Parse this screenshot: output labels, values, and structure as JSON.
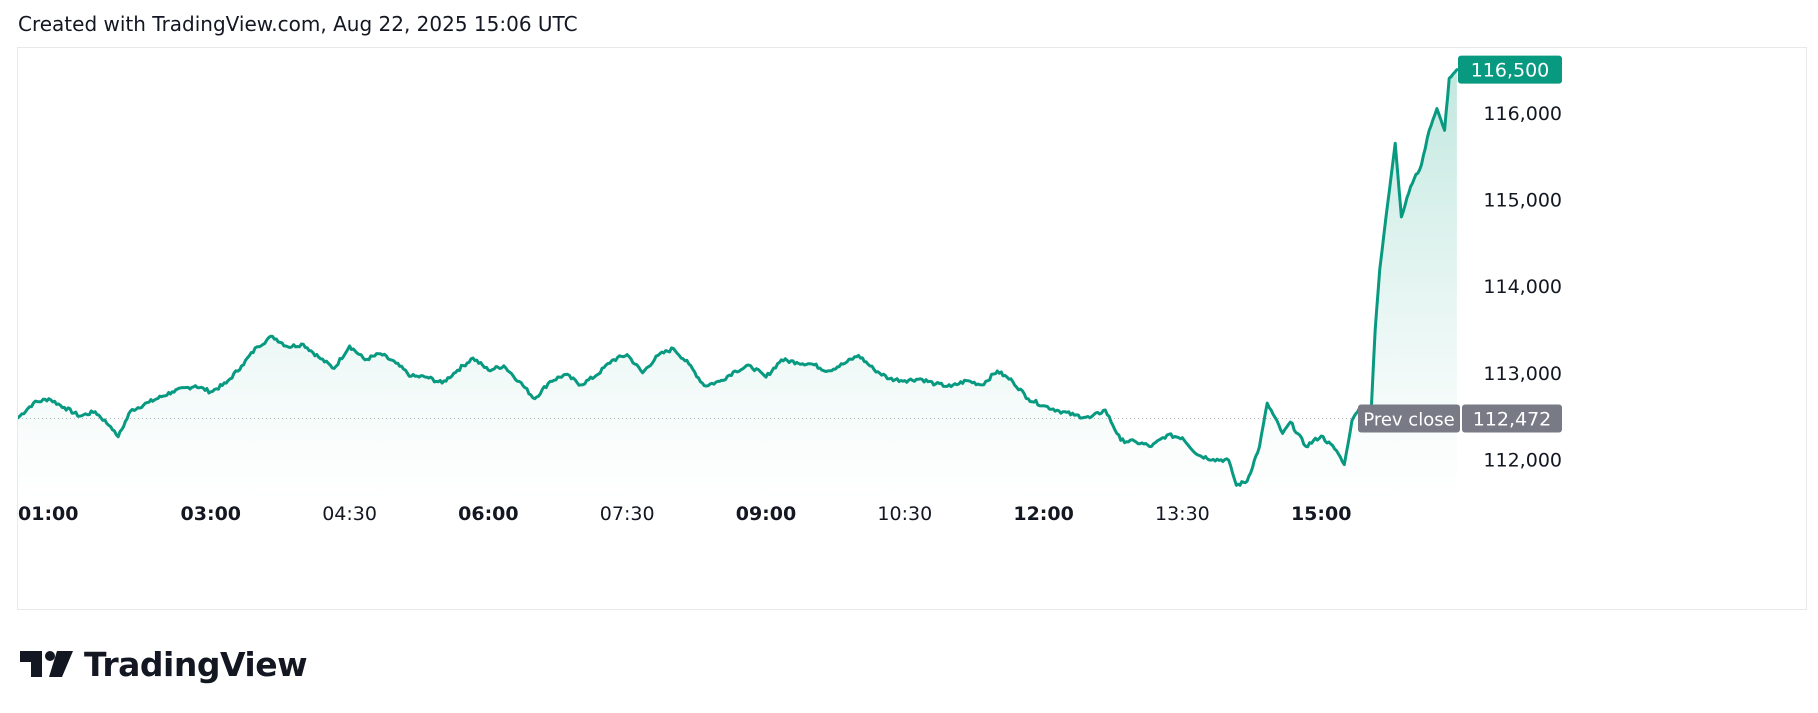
{
  "header": {
    "text": "Created with TradingView.com, Aug 22, 2025 15:06 UTC"
  },
  "brand": {
    "name": "TradingView",
    "icon": "tradingview-logo-icon"
  },
  "colors": {
    "line": "#089981",
    "area_top": "#b6e3d9",
    "area_bottom": "#ffffff",
    "last_price_bg": "#089981",
    "prev_close_bg": "#787b86",
    "text": "#131722",
    "border": "#e9e9ea"
  },
  "chart_data": {
    "type": "area",
    "title": "",
    "xlabel": "",
    "ylabel": "",
    "x_ticks": [
      {
        "label": "01:00",
        "bold": true
      },
      {
        "label": "03:00",
        "bold": true
      },
      {
        "label": "04:30",
        "bold": false
      },
      {
        "label": "06:00",
        "bold": true
      },
      {
        "label": "07:30",
        "bold": false
      },
      {
        "label": "09:00",
        "bold": true
      },
      {
        "label": "10:30",
        "bold": false
      },
      {
        "label": "12:00",
        "bold": true
      },
      {
        "label": "13:30",
        "bold": false
      },
      {
        "label": "15:00",
        "bold": true
      }
    ],
    "y_ticks": [
      "112,000",
      "113,000",
      "114,000",
      "115,000",
      "116,000"
    ],
    "y_tick_values": [
      112000,
      113000,
      114000,
      115000,
      116000
    ],
    "ylim": [
      111600,
      116750
    ],
    "xlim": [
      "00:55",
      "16:30"
    ],
    "last_price": {
      "label": "116,500",
      "value": 116500
    },
    "prev_close": {
      "name": "Prev close",
      "label": "112,472",
      "value": 112472
    },
    "series": [
      {
        "points": [
          [
            "00:55",
            112480
          ],
          [
            "01:05",
            112650
          ],
          [
            "01:15",
            112700
          ],
          [
            "01:25",
            112600
          ],
          [
            "01:35",
            112500
          ],
          [
            "01:45",
            112550
          ],
          [
            "01:55",
            112380
          ],
          [
            "02:00",
            112260
          ],
          [
            "02:08",
            112560
          ],
          [
            "02:20",
            112660
          ],
          [
            "02:35",
            112780
          ],
          [
            "02:50",
            112850
          ],
          [
            "03:00",
            112780
          ],
          [
            "03:10",
            112880
          ],
          [
            "03:20",
            113080
          ],
          [
            "03:30",
            113300
          ],
          [
            "03:40",
            113420
          ],
          [
            "03:50",
            113300
          ],
          [
            "04:00",
            113330
          ],
          [
            "04:10",
            113180
          ],
          [
            "04:20",
            113050
          ],
          [
            "04:30",
            113310
          ],
          [
            "04:40",
            113150
          ],
          [
            "04:50",
            113220
          ],
          [
            "05:00",
            113110
          ],
          [
            "05:10",
            112960
          ],
          [
            "05:20",
            112950
          ],
          [
            "05:30",
            112880
          ],
          [
            "05:40",
            113030
          ],
          [
            "05:50",
            113170
          ],
          [
            "06:00",
            113030
          ],
          [
            "06:10",
            113080
          ],
          [
            "06:20",
            112900
          ],
          [
            "06:30",
            112700
          ],
          [
            "06:40",
            112900
          ],
          [
            "06:50",
            112980
          ],
          [
            "07:00",
            112860
          ],
          [
            "07:10",
            112970
          ],
          [
            "07:20",
            113140
          ],
          [
            "07:30",
            113210
          ],
          [
            "07:40",
            113000
          ],
          [
            "07:50",
            113200
          ],
          [
            "08:00",
            113280
          ],
          [
            "08:10",
            113100
          ],
          [
            "08:20",
            112850
          ],
          [
            "08:30",
            112900
          ],
          [
            "08:40",
            113020
          ],
          [
            "08:50",
            113080
          ],
          [
            "09:00",
            112950
          ],
          [
            "09:10",
            113150
          ],
          [
            "09:20",
            113120
          ],
          [
            "09:30",
            113100
          ],
          [
            "09:40",
            113020
          ],
          [
            "09:50",
            113100
          ],
          [
            "10:00",
            113200
          ],
          [
            "10:10",
            113040
          ],
          [
            "10:20",
            112930
          ],
          [
            "10:30",
            112910
          ],
          [
            "10:40",
            112930
          ],
          [
            "10:50",
            112870
          ],
          [
            "11:00",
            112840
          ],
          [
            "11:10",
            112910
          ],
          [
            "11:20",
            112860
          ],
          [
            "11:30",
            113020
          ],
          [
            "11:40",
            112900
          ],
          [
            "11:50",
            112700
          ],
          [
            "12:00",
            112620
          ],
          [
            "12:10",
            112560
          ],
          [
            "12:20",
            112510
          ],
          [
            "12:30",
            112480
          ],
          [
            "12:40",
            112570
          ],
          [
            "12:50",
            112220
          ],
          [
            "13:00",
            112200
          ],
          [
            "13:10",
            112150
          ],
          [
            "13:20",
            112280
          ],
          [
            "13:30",
            112250
          ],
          [
            "13:40",
            112050
          ],
          [
            "13:50",
            112000
          ],
          [
            "14:00",
            111990
          ],
          [
            "14:05",
            111700
          ],
          [
            "14:12",
            111750
          ],
          [
            "14:20",
            112150
          ],
          [
            "14:25",
            112650
          ],
          [
            "14:35",
            112300
          ],
          [
            "14:40",
            112430
          ],
          [
            "14:50",
            112150
          ],
          [
            "15:00",
            112270
          ],
          [
            "15:10",
            112100
          ],
          [
            "15:15",
            111940
          ],
          [
            "15:20",
            112450
          ],
          [
            "15:25",
            112600
          ],
          [
            "15:32",
            112400
          ],
          [
            "15:35",
            113500
          ],
          [
            "15:38",
            114200
          ],
          [
            "15:42",
            114800
          ],
          [
            "15:48",
            115650
          ],
          [
            "15:52",
            114800
          ],
          [
            "15:58",
            115150
          ],
          [
            "16:05",
            115400
          ],
          [
            "16:10",
            115800
          ],
          [
            "16:15",
            116050
          ],
          [
            "16:20",
            115800
          ],
          [
            "16:23",
            116400
          ],
          [
            "16:28",
            116500
          ]
        ]
      }
    ]
  }
}
